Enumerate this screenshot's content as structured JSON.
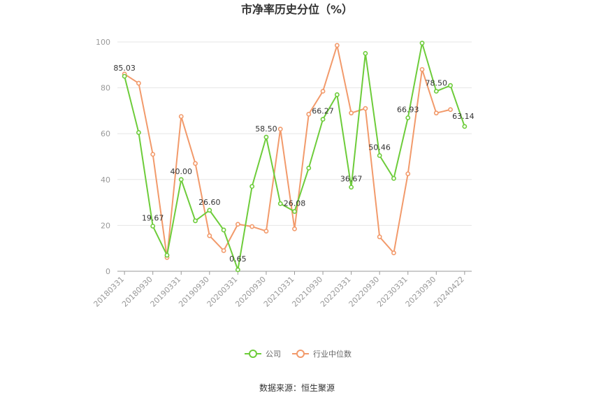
{
  "chart_data": {
    "type": "line",
    "title": "市净率历史分位（%）",
    "x": [
      "20180331",
      "20180630",
      "20180930",
      "20181231",
      "20190331",
      "20190630",
      "20190930",
      "20191231",
      "20200331",
      "20200630",
      "20200930",
      "20201231",
      "20210331",
      "20210630",
      "20210930",
      "20211231",
      "20220331",
      "20220630",
      "20220930",
      "20221231",
      "20230331",
      "20230630",
      "20230930",
      "20231231",
      "20240422"
    ],
    "xtick_labels": [
      "20180331",
      "20180930",
      "20190331",
      "20190930",
      "20200331",
      "20200930",
      "20210331",
      "20210930",
      "20220331",
      "20220930",
      "20230331",
      "20230930",
      "20240422"
    ],
    "ylim": [
      0,
      100
    ],
    "yticks": [
      0,
      20,
      40,
      60,
      80,
      100
    ],
    "grid": true,
    "legend_position": "bottom",
    "series": [
      {
        "name": "公司",
        "color": "#6dcc3a",
        "values": [
          85.03,
          60.5,
          19.67,
          7.0,
          40.0,
          22.0,
          26.6,
          18.0,
          0.65,
          37.0,
          58.5,
          29.5,
          26.08,
          45.0,
          66.27,
          77.0,
          36.67,
          95.0,
          50.46,
          40.5,
          66.93,
          99.5,
          78.5,
          81.0,
          63.14
        ],
        "labels": {
          "0": "85.03",
          "2": "19.67",
          "4": "40.00",
          "6": "26.60",
          "8": "0.65",
          "10": "58.50",
          "12": "26.08",
          "14": "66.27",
          "16": "36.67",
          "18": "50.46",
          "20": "66.93",
          "22": "78.50",
          "24": "63.14"
        }
      },
      {
        "name": "行业中位数",
        "color": "#f29a6b",
        "values": [
          86.0,
          82.0,
          51.0,
          6.0,
          67.5,
          47.0,
          15.5,
          9.0,
          20.5,
          19.5,
          17.5,
          62.0,
          18.5,
          68.5,
          78.5,
          98.5,
          69.0,
          71.0,
          15.0,
          8.0,
          42.5,
          88.0,
          69.0,
          70.5,
          null
        ]
      }
    ]
  },
  "footer": {
    "source": "数据来源：恒生聚源"
  }
}
